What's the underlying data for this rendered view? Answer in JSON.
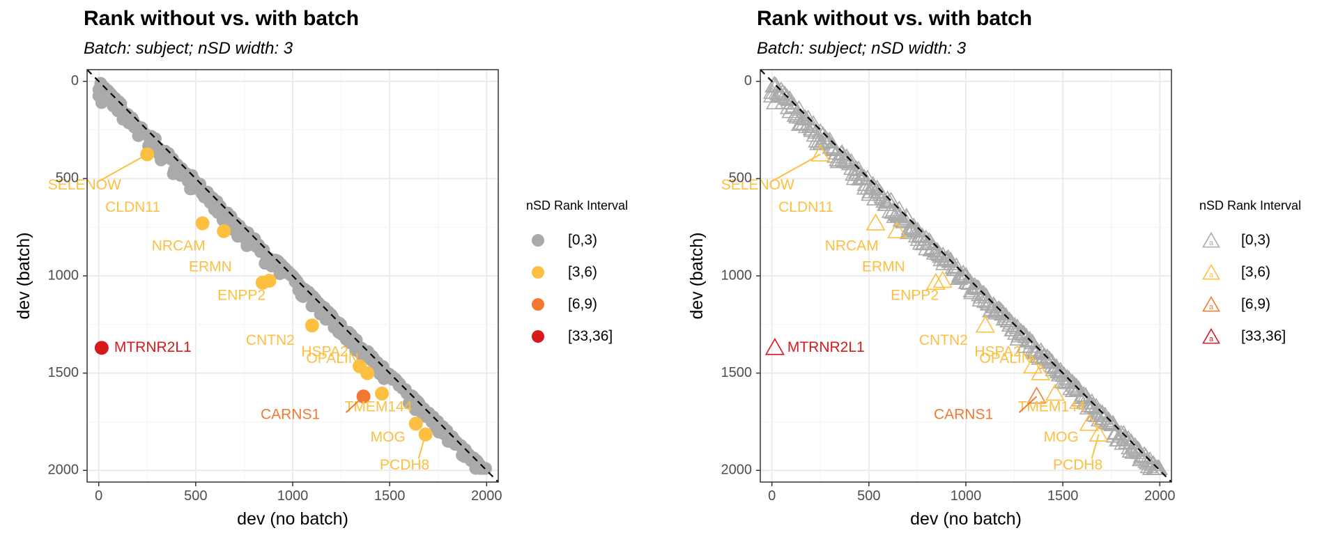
{
  "chart_data": [
    {
      "type": "scatter",
      "marker": "filled-circle",
      "title": "Rank without vs. with batch",
      "subtitle": "Batch: subject; nSD width: 3",
      "xlabel": "dev (no batch)",
      "ylabel": "dev (batch)",
      "xlim": [
        -60,
        2060
      ],
      "ylim": [
        2060,
        -60
      ],
      "y_reversed": true,
      "xticks": [
        0,
        500,
        1000,
        1500,
        2000
      ],
      "yticks": [
        0,
        500,
        1000,
        1500,
        2000
      ],
      "grid": true,
      "reference_line": "identity (dashed)",
      "legend_title": "nSD Rank Interval",
      "legend_position": "right",
      "series": [
        {
          "name": "[0,3)",
          "color": "#AAAAAA",
          "description": "dense band of nearly all genes along and just below the diagonal, from (0,0) to (2000,2000)"
        },
        {
          "name": "[3,6)",
          "color": "#FDBF40",
          "points": [
            [
              250,
              375
            ],
            [
              535,
              730
            ],
            [
              645,
              770
            ],
            [
              845,
              1035
            ],
            [
              880,
              1025
            ],
            [
              1100,
              1255
            ],
            [
              1345,
              1465
            ],
            [
              1385,
              1500
            ],
            [
              1460,
              1605
            ],
            [
              1635,
              1760
            ],
            [
              1685,
              1815
            ]
          ]
        },
        {
          "name": "[6,9)",
          "color": "#F37932",
          "points": [
            [
              1365,
              1620
            ]
          ]
        },
        {
          "name": "[33,36]",
          "color": "#D7191C",
          "points": [
            [
              15,
              1370
            ]
          ]
        }
      ],
      "labels": [
        {
          "text": "SELENOW",
          "color": "#FDBF40"
        },
        {
          "text": "CLDN11",
          "color": "#FDBF40"
        },
        {
          "text": "NRCAM",
          "color": "#FDBF40"
        },
        {
          "text": "ERMN",
          "color": "#FDBF40"
        },
        {
          "text": "ENPP2",
          "color": "#FDBF40"
        },
        {
          "text": "CNTN2",
          "color": "#FDBF40"
        },
        {
          "text": "HSPA2",
          "color": "#FDBF40"
        },
        {
          "text": "OPALIN",
          "color": "#FDBF40"
        },
        {
          "text": "TMEM144",
          "color": "#FDBF40"
        },
        {
          "text": "MOG",
          "color": "#FDBF40"
        },
        {
          "text": "PCDH8",
          "color": "#FDBF40"
        },
        {
          "text": "CARNS1",
          "color": "#F37932"
        },
        {
          "text": "MTRNR2L1",
          "color": "#D7191C"
        }
      ]
    },
    {
      "type": "scatter",
      "marker": "open-triangle",
      "title": "Rank without vs. with batch",
      "subtitle": "Batch: subject; nSD width: 3",
      "xlabel": "dev (no batch)",
      "ylabel": "dev (batch)",
      "xlim": [
        -60,
        2060
      ],
      "ylim": [
        2060,
        -60
      ],
      "y_reversed": true,
      "xticks": [
        0,
        500,
        1000,
        1500,
        2000
      ],
      "yticks": [
        0,
        500,
        1000,
        1500,
        2000
      ],
      "grid": true,
      "reference_line": "identity (dashed)",
      "legend_title": "nSD Rank Interval",
      "legend_position": "right",
      "series": [
        {
          "name": "[0,3)",
          "color": "#AAAAAA",
          "description": "dense band of nearly all genes along and just below the diagonal, from (0,0) to (2000,2000)"
        },
        {
          "name": "[3,6)",
          "color": "#FDBF40",
          "points": [
            [
              250,
              375
            ],
            [
              535,
              730
            ],
            [
              645,
              770
            ],
            [
              845,
              1035
            ],
            [
              880,
              1025
            ],
            [
              1100,
              1255
            ],
            [
              1345,
              1465
            ],
            [
              1385,
              1500
            ],
            [
              1460,
              1605
            ],
            [
              1635,
              1760
            ],
            [
              1685,
              1815
            ]
          ]
        },
        {
          "name": "[6,9)",
          "color": "#F37932",
          "points": [
            [
              1365,
              1620
            ]
          ]
        },
        {
          "name": "[33,36]",
          "color": "#D7191C",
          "points": [
            [
              15,
              1370
            ]
          ]
        }
      ],
      "labels": [
        {
          "text": "SELENOW",
          "color": "#FDBF40"
        },
        {
          "text": "CLDN11",
          "color": "#FDBF40"
        },
        {
          "text": "NRCAM",
          "color": "#FDBF40"
        },
        {
          "text": "ERMN",
          "color": "#FDBF40"
        },
        {
          "text": "ENPP2",
          "color": "#FDBF40"
        },
        {
          "text": "CNTN2",
          "color": "#FDBF40"
        },
        {
          "text": "HSPA2",
          "color": "#FDBF40"
        },
        {
          "text": "OPALIN",
          "color": "#FDBF40"
        },
        {
          "text": "TMEM144",
          "color": "#FDBF40"
        },
        {
          "text": "MOG",
          "color": "#FDBF40"
        },
        {
          "text": "PCDH8",
          "color": "#FDBF40"
        },
        {
          "text": "CARNS1",
          "color": "#F37932"
        },
        {
          "text": "MTRNR2L1",
          "color": "#D7191C"
        }
      ]
    }
  ]
}
